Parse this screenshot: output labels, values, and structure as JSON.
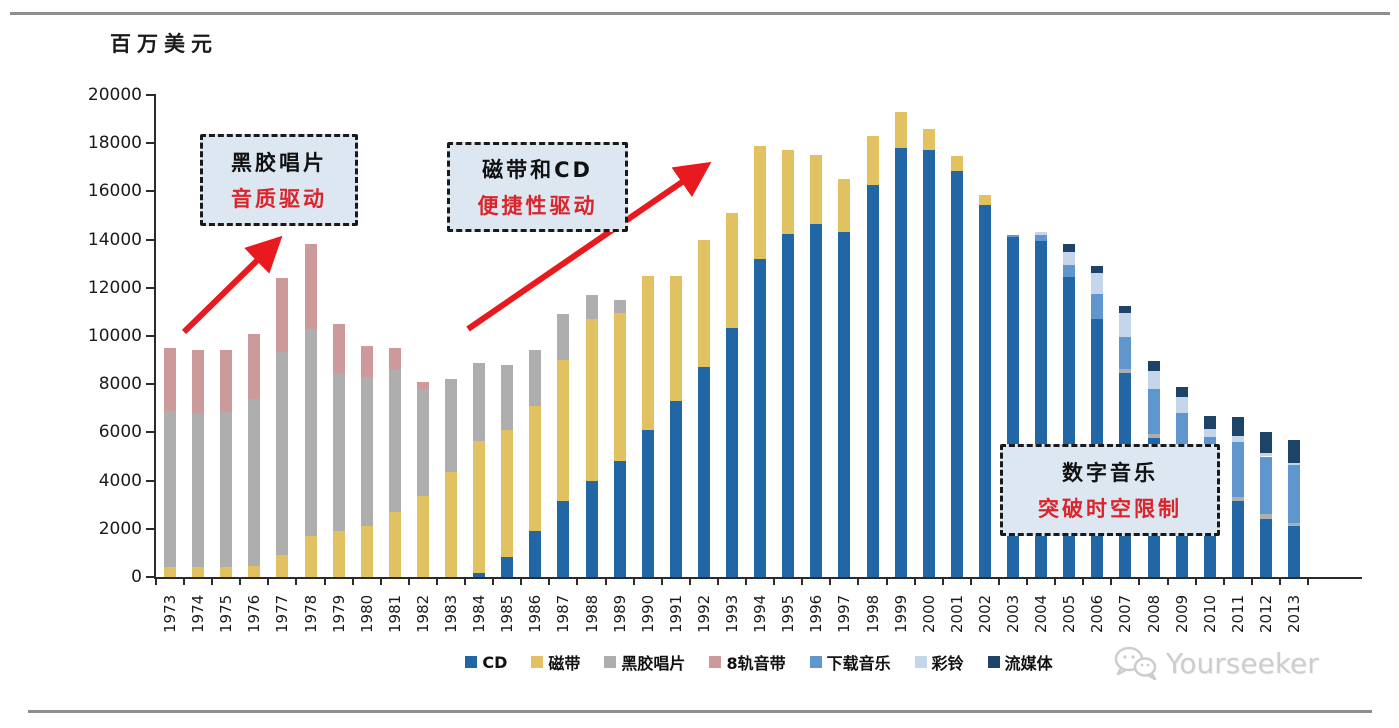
{
  "ui": {
    "unit_label": "百万美元",
    "watermark_text": "Yourseeker",
    "accent_red": "#e8191f",
    "callout_fill": "#dce7f2"
  },
  "annotations": [
    {
      "line1": "黑胶唱片",
      "line2": "音质驱动"
    },
    {
      "line1": "磁带和CD",
      "line2": "便捷性驱动"
    },
    {
      "line1": "数字音乐",
      "line2": "突破时空限制"
    }
  ],
  "chart_data": {
    "type": "bar",
    "stacked": true,
    "title": "",
    "ylabel": "百万美元",
    "xlabel": "",
    "ylim": [
      0,
      20000
    ],
    "ytick_step": 2000,
    "grid": false,
    "legend_position": "bottom",
    "categories": [
      1973,
      1974,
      1975,
      1976,
      1977,
      1978,
      1979,
      1980,
      1981,
      1982,
      1983,
      1984,
      1985,
      1986,
      1987,
      1988,
      1989,
      1990,
      1991,
      1992,
      1993,
      1994,
      1995,
      1996,
      1997,
      1998,
      1999,
      2000,
      2001,
      2002,
      2003,
      2004,
      2005,
      2006,
      2007,
      2008,
      2009,
      2010,
      2011,
      2012,
      2013
    ],
    "series": [
      {
        "name": "CD",
        "color": "#2166a5",
        "values": [
          0,
          0,
          0,
          0,
          0,
          0,
          0,
          0,
          0,
          0,
          0,
          150,
          850,
          1900,
          3150,
          4000,
          4800,
          6100,
          7300,
          8700,
          10350,
          13200,
          14250,
          14650,
          14300,
          16250,
          17800,
          17700,
          16850,
          15450,
          14100,
          13950,
          12450,
          10700,
          8450,
          5750,
          4200,
          3100,
          3150,
          2400,
          2100
        ]
      },
      {
        "name": "磁带",
        "color": "#e1c160",
        "values": [
          400,
          400,
          400,
          450,
          900,
          1700,
          1900,
          2100,
          2700,
          3350,
          4350,
          5500,
          5250,
          5200,
          5850,
          6700,
          6150,
          6400,
          5200,
          5300,
          4750,
          4700,
          3450,
          2850,
          2200,
          2050,
          1500,
          900,
          600,
          400,
          0,
          0,
          0,
          0,
          0,
          0,
          0,
          0,
          0,
          0,
          0
        ]
      },
      {
        "name": "黑胶唱片",
        "color": "#aeaeae",
        "values": [
          6500,
          6400,
          6450,
          6950,
          8450,
          8600,
          6550,
          6200,
          5900,
          4450,
          3850,
          3250,
          2700,
          2300,
          1900,
          1000,
          550,
          0,
          0,
          0,
          0,
          0,
          0,
          0,
          0,
          0,
          0,
          0,
          0,
          0,
          0,
          0,
          0,
          0,
          200,
          200,
          150,
          100,
          150,
          200,
          150
        ]
      },
      {
        "name": "8轨音带",
        "color": "#cc9a9a",
        "values": [
          2600,
          2600,
          2550,
          2700,
          3050,
          3500,
          2050,
          1300,
          900,
          300,
          0,
          0,
          0,
          0,
          0,
          0,
          0,
          0,
          0,
          0,
          0,
          0,
          0,
          0,
          0,
          0,
          0,
          0,
          0,
          0,
          0,
          0,
          0,
          0,
          0,
          0,
          0,
          0,
          0,
          0,
          0
        ]
      },
      {
        "name": "下载音乐",
        "color": "#6096ce",
        "values": [
          0,
          0,
          0,
          0,
          0,
          0,
          0,
          0,
          0,
          0,
          0,
          0,
          0,
          0,
          0,
          0,
          0,
          0,
          0,
          0,
          0,
          0,
          0,
          0,
          0,
          0,
          0,
          0,
          0,
          0,
          100,
          250,
          500,
          1050,
          1300,
          1850,
          2450,
          2600,
          2300,
          2400,
          2400
        ]
      },
      {
        "name": "彩铃",
        "color": "#c5d6eb",
        "values": [
          0,
          0,
          0,
          0,
          0,
          0,
          0,
          0,
          0,
          0,
          0,
          0,
          0,
          0,
          0,
          0,
          0,
          0,
          0,
          0,
          0,
          0,
          0,
          0,
          0,
          0,
          0,
          0,
          0,
          0,
          0,
          100,
          550,
          850,
          1000,
          750,
          680,
          350,
          250,
          150,
          100
        ]
      },
      {
        "name": "流媒体",
        "color": "#1d4468",
        "values": [
          0,
          0,
          0,
          0,
          0,
          0,
          0,
          0,
          0,
          0,
          0,
          0,
          0,
          0,
          0,
          0,
          0,
          0,
          0,
          0,
          0,
          0,
          0,
          0,
          0,
          0,
          0,
          0,
          0,
          0,
          0,
          0,
          300,
          300,
          300,
          400,
          420,
          550,
          800,
          850,
          950
        ]
      }
    ]
  }
}
